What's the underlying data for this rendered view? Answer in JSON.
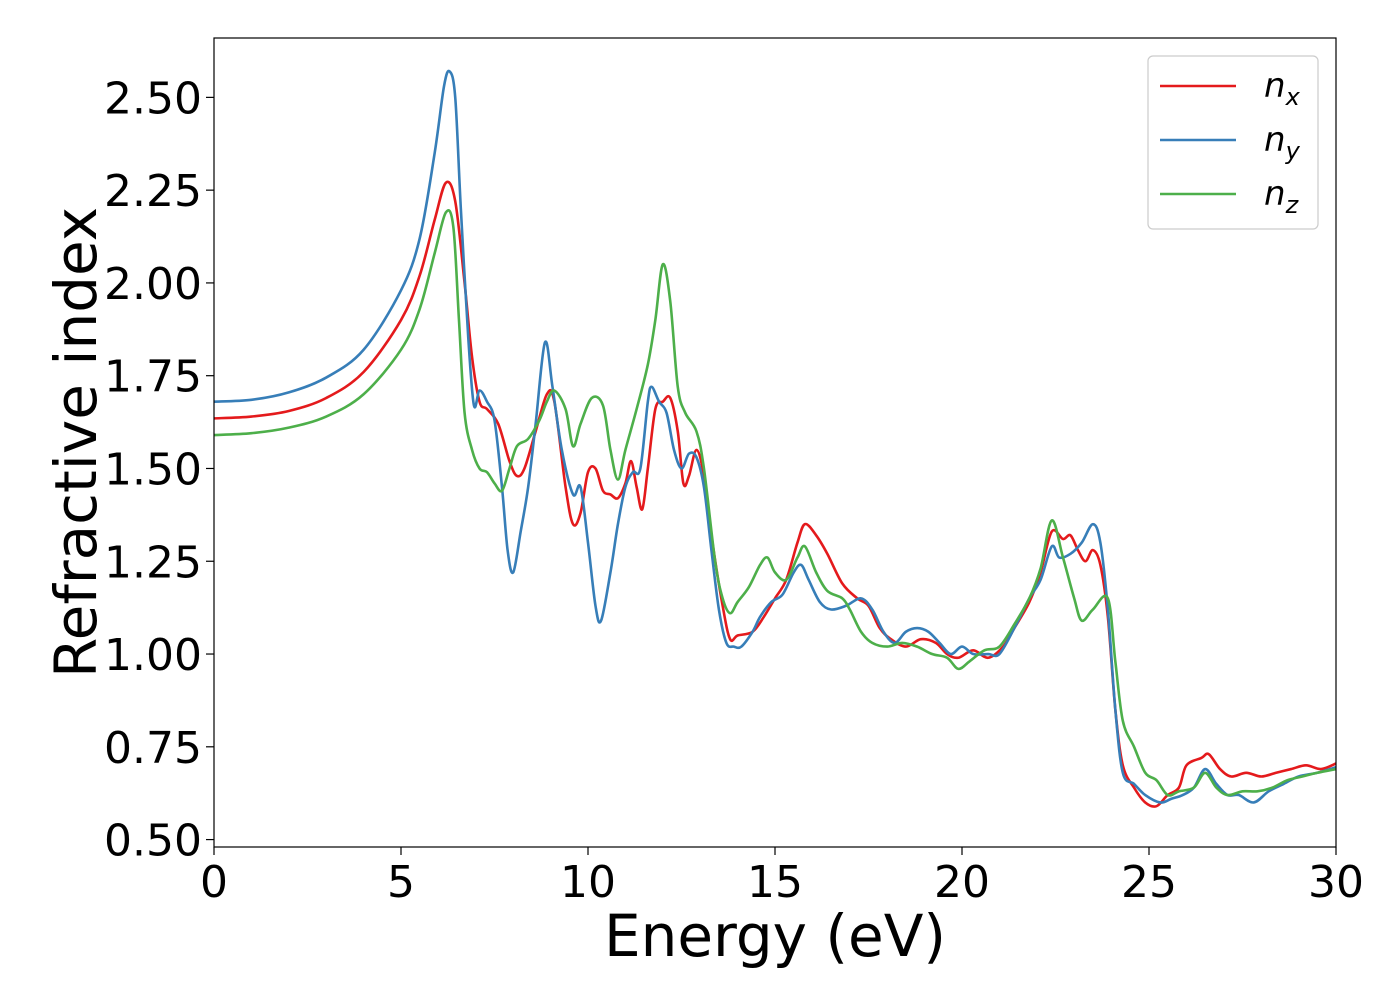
{
  "chart_data": {
    "type": "line",
    "xlabel": "Energy (eV)",
    "ylabel": "Refractive index",
    "xlim": [
      0,
      30
    ],
    "ylim": [
      0.48,
      2.66
    ],
    "xticks": [
      0,
      5,
      10,
      15,
      20,
      25,
      30
    ],
    "xtick_labels": [
      "0",
      "5",
      "10",
      "15",
      "20",
      "25",
      "30"
    ],
    "yticks": [
      0.5,
      0.75,
      1.0,
      1.25,
      1.5,
      1.75,
      2.0,
      2.25,
      2.5
    ],
    "ytick_labels": [
      "0.50",
      "0.75",
      "1.00",
      "1.25",
      "1.50",
      "1.75",
      "2.00",
      "2.25",
      "2.50"
    ],
    "grid": false,
    "legend_position": "top-right",
    "series": [
      {
        "name": "n",
        "subscript": "x",
        "color": "#e41a1c",
        "points": [
          [
            0,
            1.635
          ],
          [
            1,
            1.64
          ],
          [
            2,
            1.655
          ],
          [
            3,
            1.69
          ],
          [
            4,
            1.76
          ],
          [
            5,
            1.9
          ],
          [
            5.5,
            2.02
          ],
          [
            5.9,
            2.17
          ],
          [
            6.2,
            2.27
          ],
          [
            6.45,
            2.22
          ],
          [
            6.7,
            2.0
          ],
          [
            6.9,
            1.8
          ],
          [
            7.1,
            1.68
          ],
          [
            7.3,
            1.66
          ],
          [
            7.6,
            1.62
          ],
          [
            7.9,
            1.52
          ],
          [
            8.1,
            1.48
          ],
          [
            8.3,
            1.5
          ],
          [
            8.6,
            1.6
          ],
          [
            8.9,
            1.7
          ],
          [
            9.1,
            1.68
          ],
          [
            9.4,
            1.45
          ],
          [
            9.6,
            1.35
          ],
          [
            9.8,
            1.38
          ],
          [
            10,
            1.49
          ],
          [
            10.2,
            1.5
          ],
          [
            10.4,
            1.44
          ],
          [
            10.6,
            1.43
          ],
          [
            10.8,
            1.42
          ],
          [
            11.0,
            1.46
          ],
          [
            11.15,
            1.52
          ],
          [
            11.3,
            1.45
          ],
          [
            11.45,
            1.39
          ],
          [
            11.6,
            1.5
          ],
          [
            11.8,
            1.66
          ],
          [
            12.0,
            1.68
          ],
          [
            12.2,
            1.69
          ],
          [
            12.4,
            1.6
          ],
          [
            12.55,
            1.46
          ],
          [
            12.7,
            1.48
          ],
          [
            12.9,
            1.55
          ],
          [
            13.1,
            1.48
          ],
          [
            13.3,
            1.32
          ],
          [
            13.6,
            1.13
          ],
          [
            13.8,
            1.04
          ],
          [
            14.0,
            1.05
          ],
          [
            14.4,
            1.06
          ],
          [
            14.7,
            1.1
          ],
          [
            15.0,
            1.15
          ],
          [
            15.3,
            1.2
          ],
          [
            15.6,
            1.3
          ],
          [
            15.8,
            1.35
          ],
          [
            16.1,
            1.32
          ],
          [
            16.4,
            1.27
          ],
          [
            16.8,
            1.19
          ],
          [
            17.2,
            1.15
          ],
          [
            17.5,
            1.13
          ],
          [
            17.8,
            1.07
          ],
          [
            18.1,
            1.04
          ],
          [
            18.5,
            1.02
          ],
          [
            18.9,
            1.04
          ],
          [
            19.3,
            1.03
          ],
          [
            19.6,
            1.0
          ],
          [
            19.9,
            0.99
          ],
          [
            20.3,
            1.01
          ],
          [
            20.7,
            0.99
          ],
          [
            21.1,
            1.02
          ],
          [
            21.4,
            1.07
          ],
          [
            21.8,
            1.14
          ],
          [
            22.1,
            1.22
          ],
          [
            22.4,
            1.33
          ],
          [
            22.7,
            1.31
          ],
          [
            22.9,
            1.32
          ],
          [
            23.1,
            1.28
          ],
          [
            23.3,
            1.25
          ],
          [
            23.5,
            1.28
          ],
          [
            23.7,
            1.24
          ],
          [
            23.9,
            1.1
          ],
          [
            24.1,
            0.85
          ],
          [
            24.3,
            0.7
          ],
          [
            24.6,
            0.64
          ],
          [
            24.9,
            0.6
          ],
          [
            25.2,
            0.59
          ],
          [
            25.5,
            0.62
          ],
          [
            25.8,
            0.64
          ],
          [
            26.0,
            0.7
          ],
          [
            26.4,
            0.72
          ],
          [
            26.6,
            0.73
          ],
          [
            26.9,
            0.69
          ],
          [
            27.2,
            0.67
          ],
          [
            27.6,
            0.68
          ],
          [
            28.0,
            0.67
          ],
          [
            28.4,
            0.68
          ],
          [
            28.8,
            0.69
          ],
          [
            29.2,
            0.7
          ],
          [
            29.6,
            0.69
          ],
          [
            30,
            0.705
          ]
        ]
      },
      {
        "name": "n",
        "subscript": "y",
        "color": "#377eb8",
        "points": [
          [
            0,
            1.68
          ],
          [
            1,
            1.685
          ],
          [
            2,
            1.705
          ],
          [
            3,
            1.745
          ],
          [
            4,
            1.82
          ],
          [
            5,
            1.98
          ],
          [
            5.5,
            2.12
          ],
          [
            5.9,
            2.35
          ],
          [
            6.15,
            2.53
          ],
          [
            6.3,
            2.57
          ],
          [
            6.45,
            2.5
          ],
          [
            6.6,
            2.2
          ],
          [
            6.8,
            1.85
          ],
          [
            6.95,
            1.67
          ],
          [
            7.1,
            1.71
          ],
          [
            7.3,
            1.68
          ],
          [
            7.5,
            1.63
          ],
          [
            7.7,
            1.45
          ],
          [
            7.85,
            1.28
          ],
          [
            8.0,
            1.22
          ],
          [
            8.2,
            1.33
          ],
          [
            8.4,
            1.45
          ],
          [
            8.6,
            1.62
          ],
          [
            8.85,
            1.84
          ],
          [
            9.05,
            1.72
          ],
          [
            9.3,
            1.55
          ],
          [
            9.6,
            1.43
          ],
          [
            9.8,
            1.45
          ],
          [
            10.0,
            1.3
          ],
          [
            10.2,
            1.13
          ],
          [
            10.35,
            1.09
          ],
          [
            10.6,
            1.22
          ],
          [
            10.8,
            1.35
          ],
          [
            11.0,
            1.45
          ],
          [
            11.2,
            1.49
          ],
          [
            11.4,
            1.5
          ],
          [
            11.6,
            1.68
          ],
          [
            11.7,
            1.72
          ],
          [
            11.9,
            1.68
          ],
          [
            12.1,
            1.65
          ],
          [
            12.3,
            1.55
          ],
          [
            12.5,
            1.5
          ],
          [
            12.7,
            1.54
          ],
          [
            12.9,
            1.53
          ],
          [
            13.1,
            1.45
          ],
          [
            13.3,
            1.28
          ],
          [
            13.5,
            1.12
          ],
          [
            13.7,
            1.03
          ],
          [
            13.9,
            1.02
          ],
          [
            14.1,
            1.02
          ],
          [
            14.4,
            1.06
          ],
          [
            14.6,
            1.1
          ],
          [
            14.9,
            1.14
          ],
          [
            15.2,
            1.16
          ],
          [
            15.5,
            1.22
          ],
          [
            15.7,
            1.24
          ],
          [
            15.9,
            1.2
          ],
          [
            16.2,
            1.14
          ],
          [
            16.5,
            1.12
          ],
          [
            16.9,
            1.13
          ],
          [
            17.3,
            1.15
          ],
          [
            17.6,
            1.12
          ],
          [
            17.9,
            1.06
          ],
          [
            18.2,
            1.03
          ],
          [
            18.5,
            1.06
          ],
          [
            18.8,
            1.07
          ],
          [
            19.1,
            1.06
          ],
          [
            19.4,
            1.03
          ],
          [
            19.7,
            1.0
          ],
          [
            20.0,
            1.02
          ],
          [
            20.3,
            1.0
          ],
          [
            20.7,
            1.0
          ],
          [
            21.0,
            1.0
          ],
          [
            21.4,
            1.07
          ],
          [
            21.8,
            1.15
          ],
          [
            22.1,
            1.2
          ],
          [
            22.4,
            1.29
          ],
          [
            22.6,
            1.26
          ],
          [
            22.9,
            1.27
          ],
          [
            23.2,
            1.3
          ],
          [
            23.5,
            1.35
          ],
          [
            23.7,
            1.3
          ],
          [
            23.9,
            1.12
          ],
          [
            24.1,
            0.85
          ],
          [
            24.3,
            0.68
          ],
          [
            24.6,
            0.65
          ],
          [
            24.9,
            0.62
          ],
          [
            25.3,
            0.6
          ],
          [
            25.6,
            0.61
          ],
          [
            25.9,
            0.62
          ],
          [
            26.2,
            0.64
          ],
          [
            26.5,
            0.69
          ],
          [
            26.8,
            0.65
          ],
          [
            27.1,
            0.62
          ],
          [
            27.4,
            0.62
          ],
          [
            27.8,
            0.6
          ],
          [
            28.2,
            0.63
          ],
          [
            28.6,
            0.65
          ],
          [
            29.0,
            0.67
          ],
          [
            29.5,
            0.68
          ],
          [
            30,
            0.695
          ]
        ]
      },
      {
        "name": "n",
        "subscript": "z",
        "color": "#4daf4a",
        "points": [
          [
            0,
            1.59
          ],
          [
            1,
            1.595
          ],
          [
            2,
            1.61
          ],
          [
            3,
            1.64
          ],
          [
            4,
            1.7
          ],
          [
            5,
            1.82
          ],
          [
            5.5,
            1.93
          ],
          [
            5.9,
            2.08
          ],
          [
            6.2,
            2.19
          ],
          [
            6.4,
            2.15
          ],
          [
            6.55,
            1.9
          ],
          [
            6.7,
            1.65
          ],
          [
            6.9,
            1.55
          ],
          [
            7.1,
            1.5
          ],
          [
            7.3,
            1.49
          ],
          [
            7.5,
            1.46
          ],
          [
            7.7,
            1.44
          ],
          [
            7.9,
            1.5
          ],
          [
            8.1,
            1.56
          ],
          [
            8.4,
            1.58
          ],
          [
            8.7,
            1.63
          ],
          [
            8.9,
            1.68
          ],
          [
            9.1,
            1.71
          ],
          [
            9.4,
            1.66
          ],
          [
            9.6,
            1.56
          ],
          [
            9.8,
            1.62
          ],
          [
            10.1,
            1.69
          ],
          [
            10.4,
            1.67
          ],
          [
            10.6,
            1.55
          ],
          [
            10.8,
            1.47
          ],
          [
            11.0,
            1.55
          ],
          [
            11.3,
            1.66
          ],
          [
            11.6,
            1.78
          ],
          [
            11.8,
            1.9
          ],
          [
            12.0,
            2.05
          ],
          [
            12.2,
            1.95
          ],
          [
            12.4,
            1.72
          ],
          [
            12.6,
            1.65
          ],
          [
            12.9,
            1.6
          ],
          [
            13.1,
            1.5
          ],
          [
            13.4,
            1.25
          ],
          [
            13.6,
            1.15
          ],
          [
            13.8,
            1.11
          ],
          [
            14.0,
            1.14
          ],
          [
            14.3,
            1.18
          ],
          [
            14.6,
            1.24
          ],
          [
            14.8,
            1.26
          ],
          [
            15.0,
            1.22
          ],
          [
            15.3,
            1.2
          ],
          [
            15.6,
            1.26
          ],
          [
            15.8,
            1.29
          ],
          [
            16.1,
            1.22
          ],
          [
            16.4,
            1.17
          ],
          [
            16.8,
            1.15
          ],
          [
            17.0,
            1.12
          ],
          [
            17.3,
            1.06
          ],
          [
            17.6,
            1.03
          ],
          [
            18.0,
            1.02
          ],
          [
            18.4,
            1.03
          ],
          [
            18.8,
            1.02
          ],
          [
            19.2,
            1.0
          ],
          [
            19.6,
            0.99
          ],
          [
            19.9,
            0.96
          ],
          [
            20.2,
            0.98
          ],
          [
            20.6,
            1.01
          ],
          [
            21.0,
            1.02
          ],
          [
            21.4,
            1.08
          ],
          [
            21.8,
            1.15
          ],
          [
            22.1,
            1.23
          ],
          [
            22.4,
            1.36
          ],
          [
            22.7,
            1.26
          ],
          [
            23.0,
            1.15
          ],
          [
            23.2,
            1.09
          ],
          [
            23.5,
            1.12
          ],
          [
            23.9,
            1.15
          ],
          [
            24.1,
            0.98
          ],
          [
            24.3,
            0.82
          ],
          [
            24.6,
            0.75
          ],
          [
            24.9,
            0.68
          ],
          [
            25.2,
            0.66
          ],
          [
            25.5,
            0.62
          ],
          [
            25.8,
            0.63
          ],
          [
            26.2,
            0.64
          ],
          [
            26.5,
            0.68
          ],
          [
            26.8,
            0.64
          ],
          [
            27.1,
            0.62
          ],
          [
            27.5,
            0.63
          ],
          [
            27.9,
            0.63
          ],
          [
            28.3,
            0.64
          ],
          [
            28.7,
            0.66
          ],
          [
            29.1,
            0.67
          ],
          [
            29.5,
            0.68
          ],
          [
            30,
            0.69
          ]
        ]
      }
    ]
  }
}
